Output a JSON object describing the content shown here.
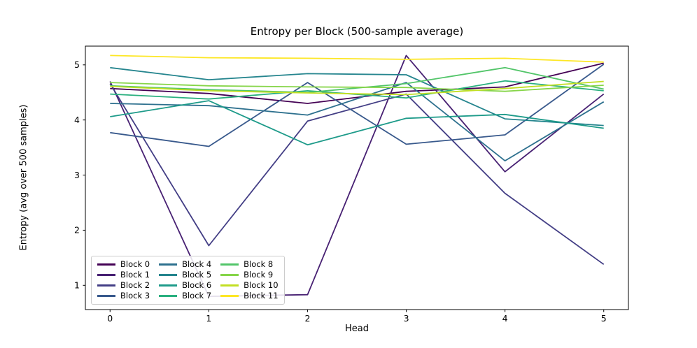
{
  "figure": {
    "title": "Entropy per Block (500-sample average)",
    "xlabel": "Head",
    "ylabel": "Entropy (avg over 500 samples)"
  },
  "chart_data": {
    "type": "line",
    "title": "Entropy per Block (500-sample average)",
    "xlabel": "Head",
    "ylabel": "Entropy (avg over 500 samples)",
    "x": [
      0,
      1,
      2,
      3,
      4,
      5
    ],
    "x_tick_labels": [
      "0",
      "1",
      "2",
      "3",
      "4",
      "5"
    ],
    "y_ticks": [
      1,
      2,
      3,
      4,
      5
    ],
    "y_tick_labels": [
      "1",
      "2",
      "3",
      "4",
      "5"
    ],
    "xlim": [
      -0.25,
      5.25
    ],
    "ylim": [
      0.56,
      5.34
    ],
    "grid": false,
    "legend_position": "lower left",
    "legend_columns": 3,
    "series": [
      {
        "name": "Block 0",
        "color": "#440154",
        "values": [
          4.57,
          4.48,
          4.3,
          4.52,
          4.6,
          5.03
        ]
      },
      {
        "name": "Block 1",
        "color": "#482173",
        "values": [
          4.7,
          0.8,
          0.83,
          5.17,
          3.06,
          4.47
        ]
      },
      {
        "name": "Block 2",
        "color": "#433e85",
        "values": [
          4.66,
          1.72,
          3.98,
          4.47,
          2.67,
          1.38
        ]
      },
      {
        "name": "Block 3",
        "color": "#38598c",
        "values": [
          3.77,
          3.52,
          4.68,
          3.56,
          3.73,
          5.01
        ]
      },
      {
        "name": "Block 4",
        "color": "#2d708e",
        "values": [
          4.3,
          4.26,
          4.09,
          4.68,
          3.26,
          4.33
        ]
      },
      {
        "name": "Block 5",
        "color": "#25858e",
        "values": [
          4.95,
          4.73,
          4.84,
          4.82,
          4.02,
          3.9
        ]
      },
      {
        "name": "Block 6",
        "color": "#1e9b8a",
        "values": [
          4.06,
          4.35,
          3.55,
          4.03,
          4.1,
          3.85
        ]
      },
      {
        "name": "Block 7",
        "color": "#2ab07f",
        "values": [
          4.47,
          4.38,
          4.53,
          4.4,
          4.71,
          4.53
        ]
      },
      {
        "name": "Block 8",
        "color": "#52c569",
        "values": [
          4.62,
          4.55,
          4.5,
          4.66,
          4.95,
          4.56
        ]
      },
      {
        "name": "Block 9",
        "color": "#86d549",
        "values": [
          4.68,
          4.62,
          4.6,
          4.59,
          4.52,
          4.63
        ]
      },
      {
        "name": "Block 10",
        "color": "#c2df23",
        "values": [
          4.61,
          4.53,
          4.49,
          4.46,
          4.57,
          4.7
        ]
      },
      {
        "name": "Block 11",
        "color": "#fde725",
        "values": [
          5.17,
          5.13,
          5.12,
          5.1,
          5.12,
          5.05
        ]
      }
    ]
  }
}
